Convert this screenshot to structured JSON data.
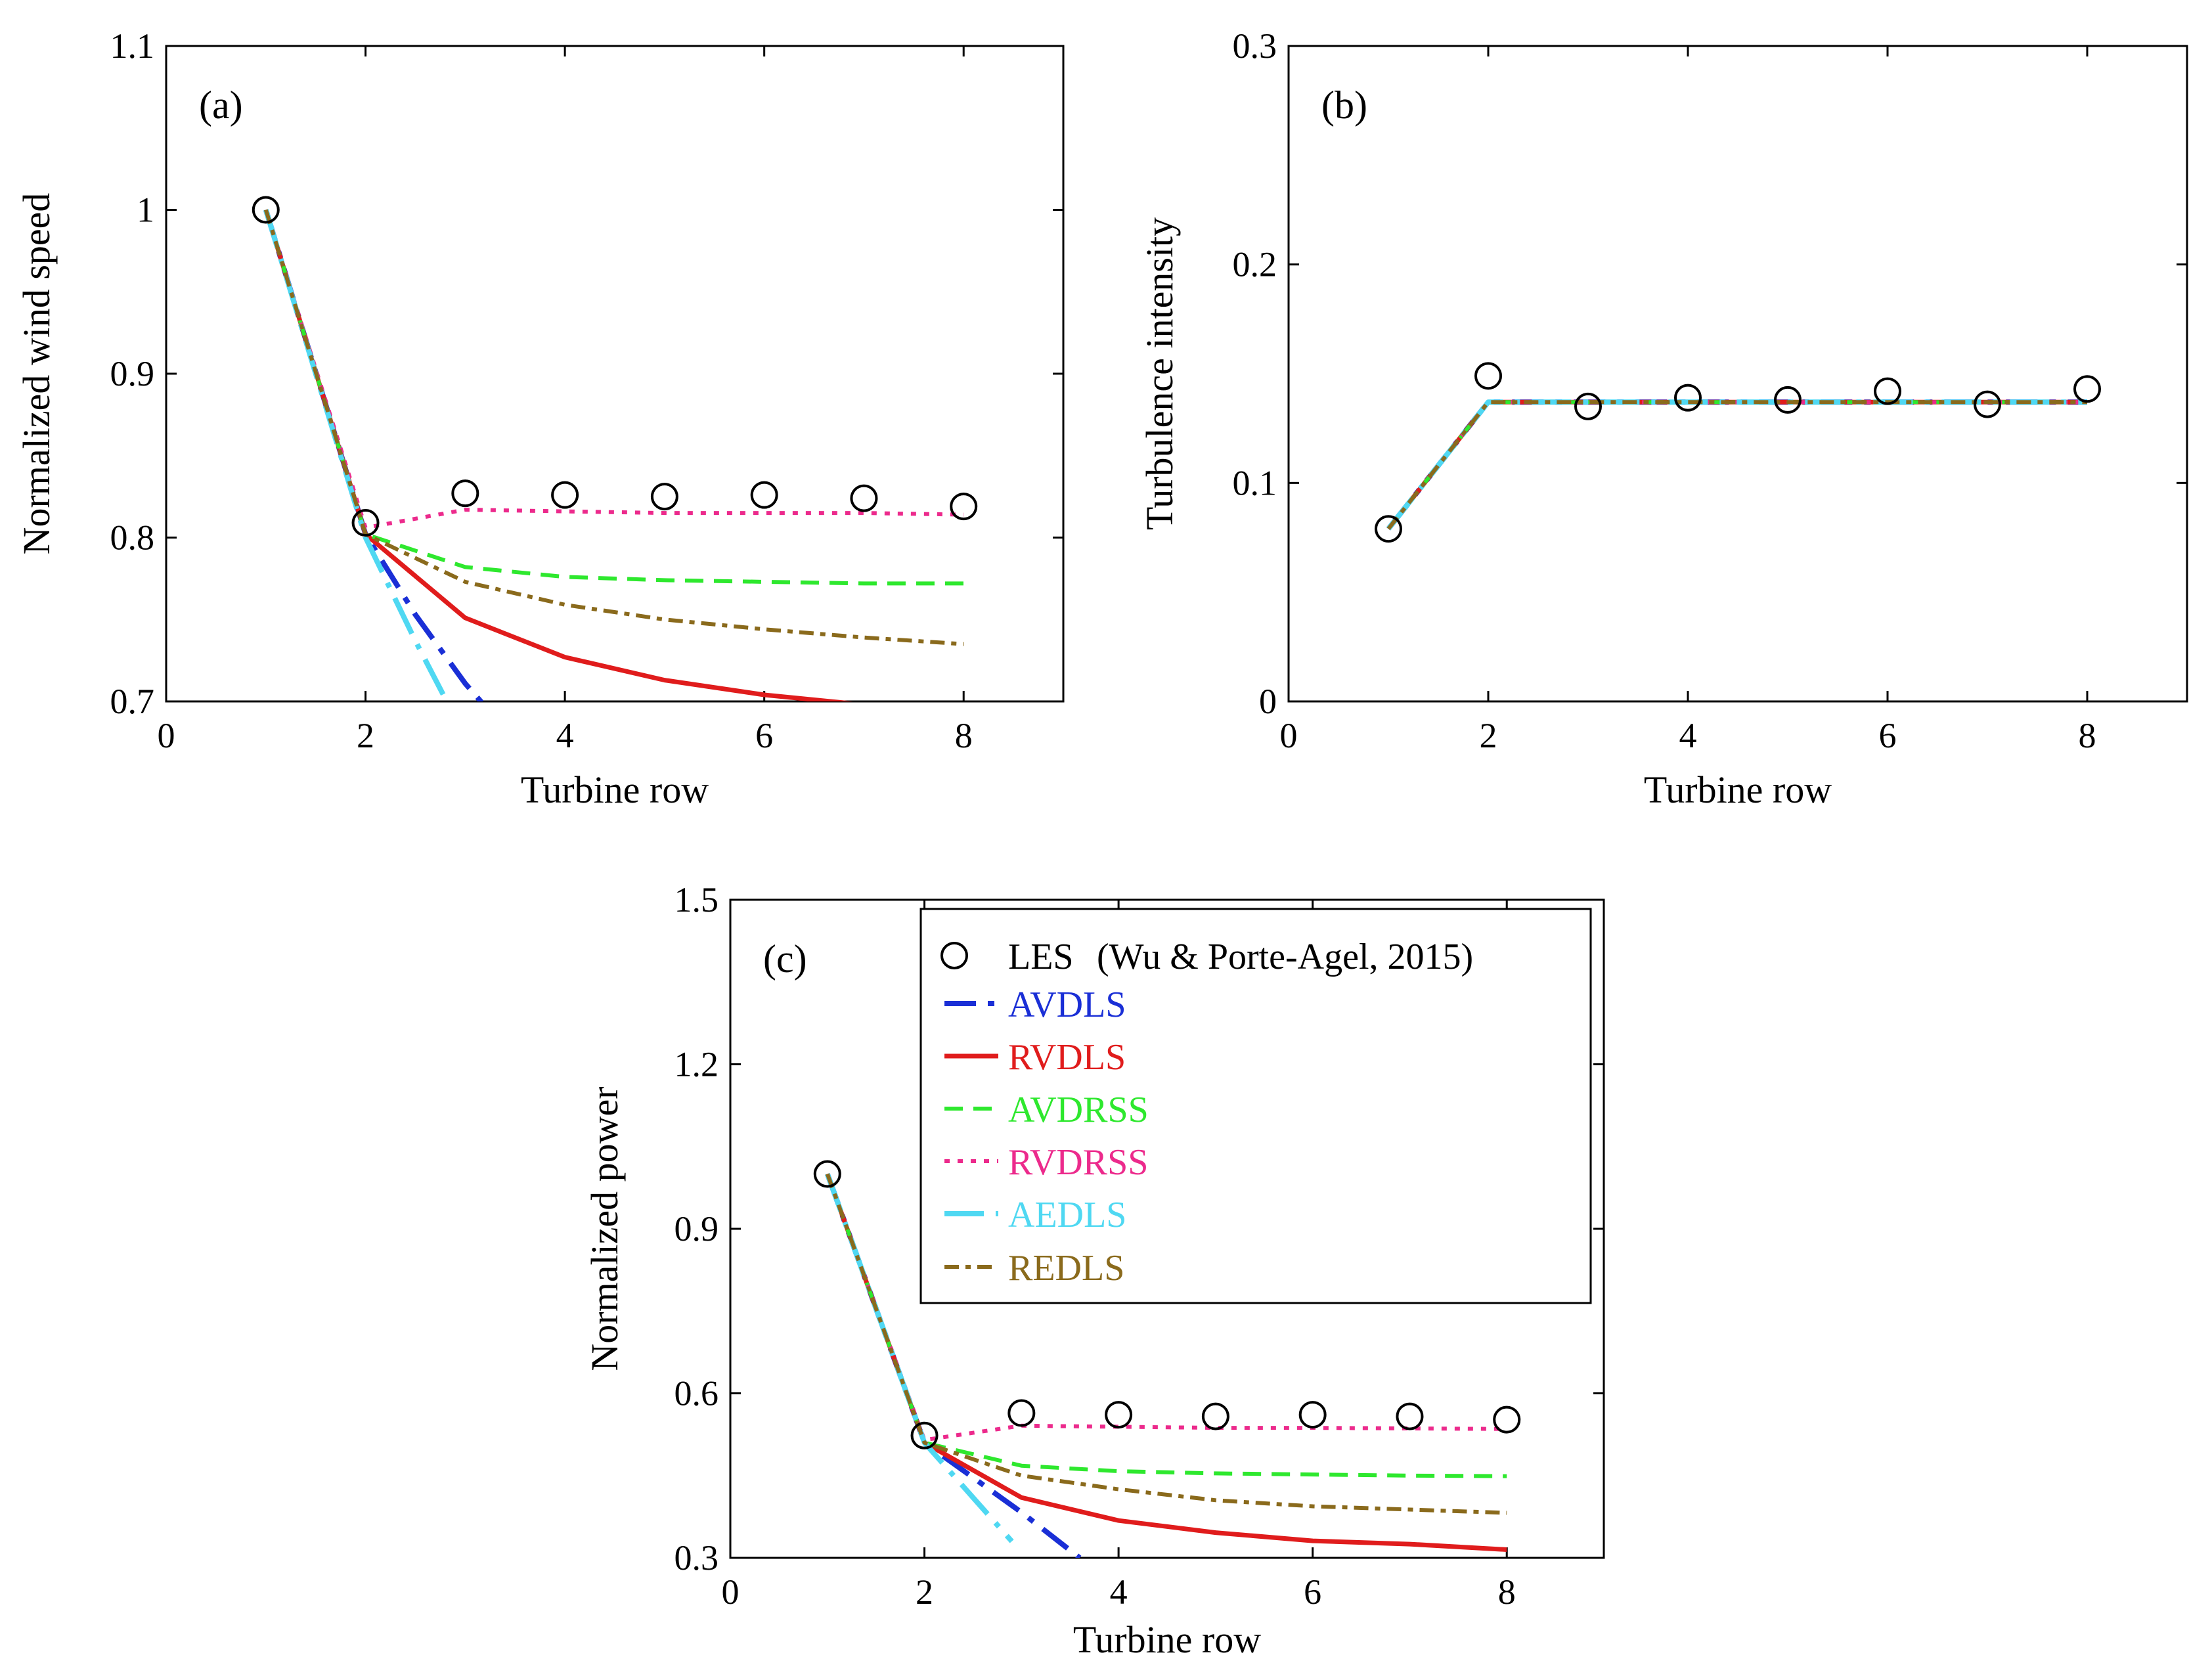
{
  "colors": {
    "les": "#000000",
    "AVDLS": "#1a2fd6",
    "RVDLS": "#e01c1c",
    "AVDRSS": "#2ee82e",
    "RVDRSS": "#ec2a8c",
    "AEDLS": "#4fd8f2",
    "REDLS": "#8a6a1c"
  },
  "legend": {
    "les_label": "LES",
    "les_source": "(Wu & Porte-Agel, 2015)",
    "series_labels": [
      "AVDLS",
      "RVDLS",
      "AVDRSS",
      "RVDRSS",
      "AEDLS",
      "REDLS"
    ]
  },
  "chart_data": [
    {
      "id": "a",
      "panel_label": "(a)",
      "type": "line",
      "xlabel": "Turbine row",
      "ylabel": "Normalized wind speed",
      "xlim": [
        0,
        9
      ],
      "ylim": [
        0.7,
        1.1
      ],
      "xticks": [
        0,
        2,
        4,
        6,
        8
      ],
      "xtick_labels": [
        "0",
        "2",
        "4",
        "6",
        "8"
      ],
      "yticks": [
        0.7,
        0.8,
        0.9,
        1.0,
        1.1
      ],
      "ytick_labels": [
        "0.7",
        "0.8",
        "0.9",
        "1",
        "1.1"
      ],
      "les": {
        "x": [
          1,
          2,
          3,
          4,
          5,
          6,
          7,
          8
        ],
        "y": [
          1.0,
          0.809,
          0.827,
          0.826,
          0.825,
          0.826,
          0.824,
          0.819
        ]
      },
      "series": [
        {
          "name": "AVDLS",
          "x": [
            1,
            2,
            2.5,
            3,
            3.3
          ],
          "y": [
            1.0,
            0.802,
            0.753,
            0.711,
            0.69
          ]
        },
        {
          "name": "RVDLS",
          "x": [
            1,
            2,
            3,
            4,
            5,
            6,
            7
          ],
          "y": [
            1.0,
            0.802,
            0.751,
            0.727,
            0.713,
            0.704,
            0.698
          ]
        },
        {
          "name": "AVDRSS",
          "x": [
            1,
            2,
            3,
            4,
            5,
            6,
            7,
            8
          ],
          "y": [
            1.0,
            0.802,
            0.782,
            0.776,
            0.774,
            0.773,
            0.772,
            0.772
          ]
        },
        {
          "name": "RVDRSS",
          "x": [
            1,
            2,
            3,
            4,
            5,
            6,
            7,
            8
          ],
          "y": [
            1.0,
            0.806,
            0.817,
            0.816,
            0.815,
            0.815,
            0.815,
            0.814
          ]
        },
        {
          "name": "AEDLS",
          "x": [
            1,
            2,
            2.5,
            2.9
          ],
          "y": [
            1.0,
            0.8,
            0.737,
            0.69
          ]
        },
        {
          "name": "REDLS",
          "x": [
            1,
            2,
            3,
            4,
            5,
            6,
            7,
            8
          ],
          "y": [
            1.0,
            0.802,
            0.773,
            0.759,
            0.75,
            0.744,
            0.739,
            0.735
          ]
        }
      ]
    },
    {
      "id": "b",
      "panel_label": "(b)",
      "type": "line",
      "xlabel": "Turbine row",
      "ylabel": "Turbulence intensity",
      "xlim": [
        0,
        9
      ],
      "ylim": [
        0,
        0.3
      ],
      "xticks": [
        0,
        2,
        4,
        6,
        8
      ],
      "xtick_labels": [
        "0",
        "2",
        "4",
        "6",
        "8"
      ],
      "yticks": [
        0,
        0.1,
        0.2,
        0.3
      ],
      "ytick_labels": [
        "0",
        "0.1",
        "0.2",
        "0.3"
      ],
      "les": {
        "x": [
          1,
          2,
          3,
          4,
          5,
          6,
          7,
          8
        ],
        "y": [
          0.079,
          0.149,
          0.135,
          0.139,
          0.138,
          0.142,
          0.136,
          0.143
        ]
      },
      "series": [
        {
          "name": "AVDLS",
          "x": [
            1,
            2,
            8
          ],
          "y": [
            0.079,
            0.137,
            0.137
          ]
        },
        {
          "name": "RVDLS",
          "x": [
            1,
            2,
            8
          ],
          "y": [
            0.079,
            0.137,
            0.137
          ]
        },
        {
          "name": "AVDRSS",
          "x": [
            1,
            2,
            8
          ],
          "y": [
            0.079,
            0.137,
            0.137
          ]
        },
        {
          "name": "RVDRSS",
          "x": [
            1,
            2,
            8
          ],
          "y": [
            0.079,
            0.137,
            0.137
          ]
        },
        {
          "name": "AEDLS",
          "x": [
            1,
            2,
            8
          ],
          "y": [
            0.079,
            0.137,
            0.137
          ]
        },
        {
          "name": "REDLS",
          "x": [
            1,
            2,
            8
          ],
          "y": [
            0.079,
            0.137,
            0.137
          ]
        }
      ]
    },
    {
      "id": "c",
      "panel_label": "(c)",
      "type": "line",
      "xlabel": "Turbine row",
      "ylabel": "Normalized power",
      "xlim": [
        0,
        9
      ],
      "ylim": [
        0.3,
        1.5
      ],
      "xticks": [
        0,
        2,
        4,
        6,
        8
      ],
      "xtick_labels": [
        "0",
        "2",
        "4",
        "6",
        "8"
      ],
      "yticks": [
        0.3,
        0.6,
        0.9,
        1.2,
        1.5
      ],
      "ytick_labels": [
        "0.3",
        "0.6",
        "0.9",
        "1.2",
        "1.5"
      ],
      "legend_position": "top-right",
      "les": {
        "x": [
          1,
          2,
          3,
          4,
          5,
          6,
          7,
          8
        ],
        "y": [
          1.0,
          0.523,
          0.564,
          0.561,
          0.558,
          0.561,
          0.558,
          0.552
        ]
      },
      "series": [
        {
          "name": "AVDLS",
          "x": [
            1,
            2,
            3,
            3.6
          ],
          "y": [
            1.0,
            0.51,
            0.383,
            0.3
          ]
        },
        {
          "name": "RVDLS",
          "x": [
            1,
            2,
            3,
            4,
            5,
            6,
            7,
            8
          ],
          "y": [
            1.0,
            0.51,
            0.41,
            0.368,
            0.346,
            0.331,
            0.325,
            0.315
          ]
        },
        {
          "name": "AVDRSS",
          "x": [
            1,
            2,
            3,
            4,
            5,
            6,
            7,
            8
          ],
          "y": [
            1.0,
            0.51,
            0.468,
            0.458,
            0.454,
            0.452,
            0.45,
            0.449
          ]
        },
        {
          "name": "RVDRSS",
          "x": [
            1,
            2,
            3,
            4,
            5,
            6,
            7,
            8
          ],
          "y": [
            1.0,
            0.515,
            0.541,
            0.539,
            0.537,
            0.537,
            0.536,
            0.535
          ]
        },
        {
          "name": "AEDLS",
          "x": [
            1,
            2,
            2.9
          ],
          "y": [
            1.0,
            0.51,
            0.33
          ]
        },
        {
          "name": "REDLS",
          "x": [
            1,
            2,
            3,
            4,
            5,
            6,
            7,
            8
          ],
          "y": [
            1.0,
            0.51,
            0.45,
            0.425,
            0.405,
            0.394,
            0.388,
            0.382
          ]
        }
      ]
    }
  ]
}
